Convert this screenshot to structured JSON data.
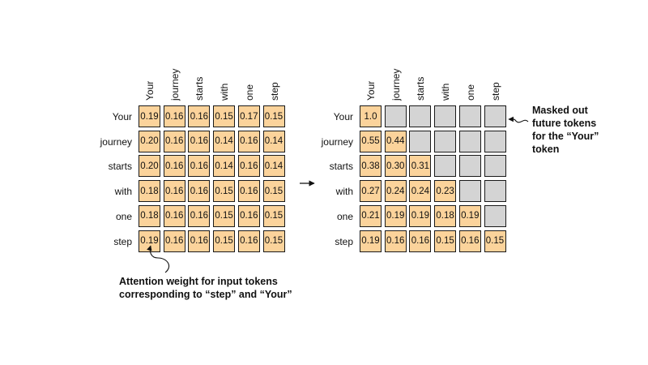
{
  "tokens": [
    "Your",
    "journey",
    "starts",
    "with",
    "one",
    "step"
  ],
  "left_matrix": [
    [
      "0.19",
      "0.16",
      "0.16",
      "0.15",
      "0.17",
      "0.15"
    ],
    [
      "0.20",
      "0.16",
      "0.16",
      "0.14",
      "0.16",
      "0.14"
    ],
    [
      "0.20",
      "0.16",
      "0.16",
      "0.14",
      "0.16",
      "0.14"
    ],
    [
      "0.18",
      "0.16",
      "0.16",
      "0.15",
      "0.16",
      "0.15"
    ],
    [
      "0.18",
      "0.16",
      "0.16",
      "0.15",
      "0.16",
      "0.15"
    ],
    [
      "0.19",
      "0.16",
      "0.16",
      "0.15",
      "0.16",
      "0.15"
    ]
  ],
  "right_matrix": [
    [
      "1.0",
      null,
      null,
      null,
      null,
      null
    ],
    [
      "0.55",
      "0.44",
      null,
      null,
      null,
      null
    ],
    [
      "0.38",
      "0.30",
      "0.31",
      null,
      null,
      null
    ],
    [
      "0.27",
      "0.24",
      "0.24",
      "0.23",
      null,
      null
    ],
    [
      "0.21",
      "0.19",
      "0.19",
      "0.18",
      "0.19",
      null
    ],
    [
      "0.19",
      "0.16",
      "0.16",
      "0.15",
      "0.16",
      "0.15"
    ]
  ],
  "annotations": {
    "attention_note": [
      "Attention weight for input tokens",
      "corresponding to “step” and “Your”"
    ],
    "masked_note": [
      "Masked out",
      "future tokens",
      "for the “Your”",
      "token"
    ]
  },
  "colors": {
    "value_cell": "#fbd39b",
    "masked_cell": "#d4d4d4",
    "border": "#1a1a1a"
  }
}
